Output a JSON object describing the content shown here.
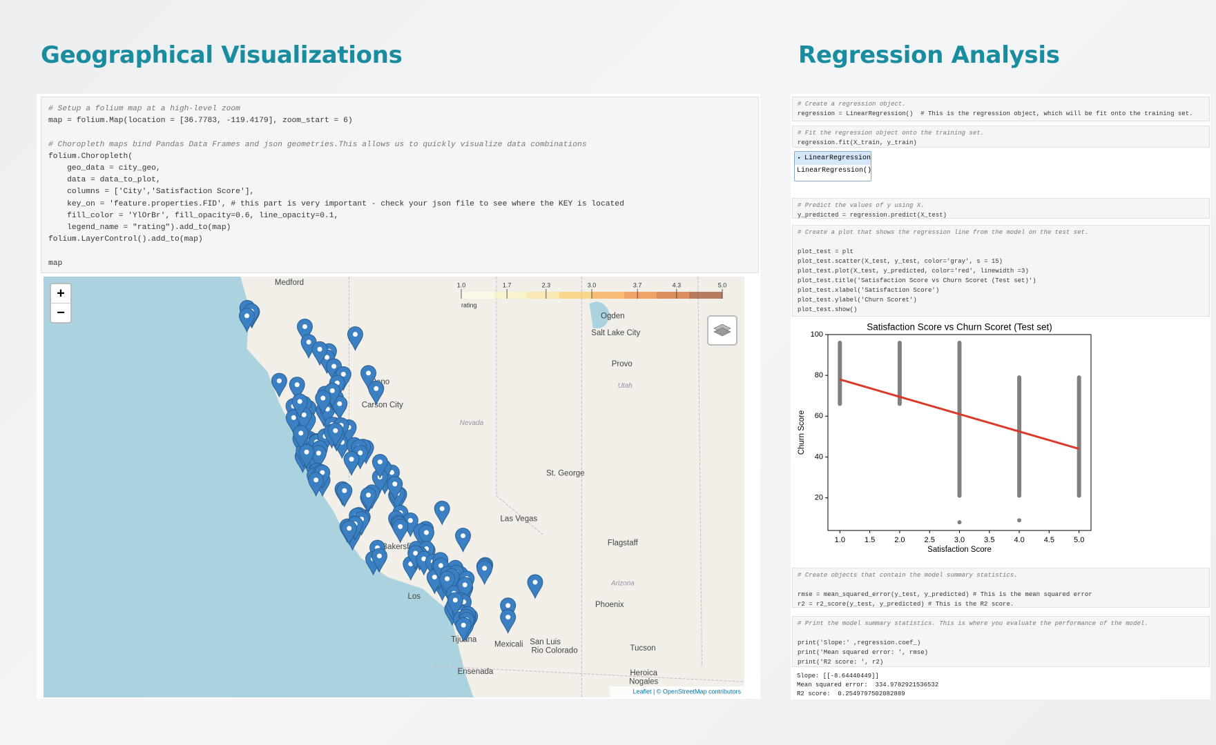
{
  "geo": {
    "title": "Geographical Visualizations",
    "code": [
      [
        "# Setup a folium map at a high-level zoom",
        "map = folium.Map(location = [36.7783, -119.4179], zoom_start = 6)"
      ],
      [
        "# Choropleth maps bind Pandas Data Frames and json geometries.This allows us to quickly visualize data combinations",
        "folium.Choropleth(",
        "    geo_data = city_geo,",
        "    data = data_to_plot,",
        "    columns = ['City','Satisfaction Score'],",
        "    key_on = 'feature.properties.FID', # this part is very important - check your json file to see where the KEY is located",
        "    fill_color = 'YlOrBr', fill_opacity=0.6, line_opacity=0.1,",
        "    legend_name = \"rating\").add_to(map)",
        "folium.LayerControl().add_to(map)"
      ],
      [
        "map"
      ]
    ],
    "map": {
      "zoom_in": "+",
      "zoom_out": "−",
      "legend_range": [
        1,
        5
      ],
      "legend_ticks": [
        {
          "value": 1,
          "label": "1.0"
        },
        1.7,
        2.3,
        {
          "value": 3,
          "label": "3.0"
        },
        3.7,
        4.3,
        {
          "value": 5,
          "label": "5.0"
        }
      ],
      "legend_name": "rating",
      "places": [
        "Medford",
        "Ogden",
        "Salt Lake City",
        "Provo",
        "Utah",
        "Reno",
        "Carson City",
        "Nevada",
        "St. George",
        "Las Vegas",
        "Flagstaff",
        "Arizona",
        "Phoenix",
        "Tucson",
        "Mexicali",
        "San Luis",
        "Rio Colorado",
        "Ensenada",
        "Heroica",
        "Nogales",
        "Tijuana",
        "Bakersfield",
        "Los"
      ],
      "attribution": "Leaflet | © OpenStreetMap contributors"
    }
  },
  "regression": {
    "title": "Regression Analysis",
    "cell1": [
      [
        "# Create a regression object.",
        "regression = LinearRegression()  # This is the regression object, which will be fit onto the training set."
      ]
    ],
    "cell2": [
      [
        "# Fit the regression object onto the training set.",
        "regression.fit(X_train, y_train)"
      ]
    ],
    "widget": {
      "header": "LinearRegression",
      "body": "LinearRegression()"
    },
    "cell3": [
      [
        "# Predict the values of y using X.",
        "y_predicted = regression.predict(X_test)"
      ]
    ],
    "cell4": [
      [
        "# Create a plot that shows the regression line from the model on the test set."
      ],
      [
        "plot_test = plt",
        "plot_test.scatter(X_test, y_test, color='gray', s = 15)",
        "plot_test.plot(X_test, y_predicted, color='red', linewidth =3)",
        "plot_test.title('Satisfaction Score vs Churn Scoret (Test set)')",
        "plot_test.xlabel('Satisfaction Score')",
        "plot_test.ylabel('Churn Scoret')",
        "plot_test.show()"
      ]
    ],
    "chart": {
      "type": "scatter",
      "title": "Satisfaction Score vs Churn Scoret (Test set)",
      "x_label": "Satisfaction Score",
      "y_label": "Churn Score",
      "xlim": [
        0.8,
        5.2
      ],
      "ylim": [
        4,
        100
      ],
      "xticks": [
        {
          "value": 1,
          "label": "1.0"
        },
        1.5,
        {
          "value": 2,
          "label": "2.0"
        },
        2.5,
        {
          "value": 3,
          "label": "3.0"
        },
        3.5,
        {
          "value": 4,
          "label": "4.0"
        },
        4.5,
        {
          "value": 5,
          "label": "5.0"
        }
      ],
      "yticks": [
        20,
        40,
        60,
        80,
        100
      ],
      "point_color": "#808080",
      "line_color": "#d93a2b",
      "ranges": [
        {
          "x": 1,
          "low": 65,
          "high": 97
        },
        {
          "x": 2,
          "low": 65,
          "high": 97
        },
        {
          "x": 3,
          "low": 20,
          "high": 97
        },
        {
          "x": 4,
          "low": 20,
          "high": 80
        },
        {
          "x": 5,
          "low": 20,
          "high": 80
        }
      ],
      "outliers": {
        "x": [
          3,
          4
        ],
        "y": [
          8,
          9
        ]
      },
      "fit": {
        "x": [
          1,
          5
        ],
        "y": [
          78,
          44
        ]
      }
    },
    "cell5": [
      [
        "# Create objects that contain the model summary statistics."
      ],
      [
        "rmse = mean_squared_error(y_test, y_predicted) # This is the mean squared error",
        "r2 = r2_score(y_test, y_predicted) # This is the R2 score."
      ]
    ],
    "cell6": [
      [
        "# Print the model summary statistics. This is where you evaluate the performance of the model."
      ],
      [
        "print('Slope:' ,regression.coef_)",
        "print('Mean squared error: ', rmse)",
        "print('R2 score: ', r2)"
      ]
    ],
    "output": [
      "Slope: [[-8.64440449]]",
      "Mean squared error:  334.9782921536532",
      "R2 score:  0.2549797502082889"
    ]
  }
}
